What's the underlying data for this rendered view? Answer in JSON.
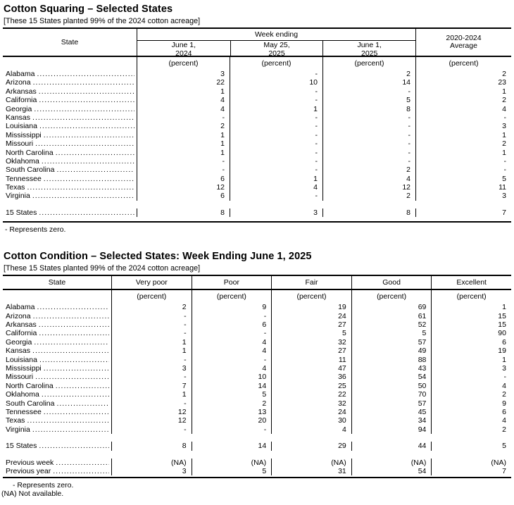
{
  "squaring": {
    "title": "Cotton Squaring – Selected States",
    "subtitle": "[These 15 States planted 99% of the 2024 cotton acreage]",
    "header": {
      "state": "State",
      "group": "Week ending",
      "cols": [
        "June 1,\n2024",
        "May 25,\n2025",
        "June 1,\n2025"
      ],
      "average": "2020-2024\nAverage"
    },
    "unit_label": "(percent)",
    "rows": [
      {
        "label": "Alabama",
        "values": [
          "3",
          "-",
          "2",
          "2"
        ]
      },
      {
        "label": "Arizona",
        "values": [
          "22",
          "10",
          "14",
          "23"
        ]
      },
      {
        "label": "Arkansas",
        "values": [
          "1",
          "-",
          "-",
          "1"
        ]
      },
      {
        "label": "California",
        "values": [
          "4",
          "-",
          "5",
          "2"
        ]
      },
      {
        "label": "Georgia",
        "values": [
          "4",
          "1",
          "8",
          "4"
        ]
      },
      {
        "label": "Kansas",
        "values": [
          "-",
          "-",
          "-",
          "-"
        ]
      },
      {
        "label": "Louisiana",
        "values": [
          "2",
          "-",
          "-",
          "3"
        ]
      },
      {
        "label": "Mississippi",
        "values": [
          "1",
          "-",
          "-",
          "1"
        ]
      },
      {
        "label": "Missouri",
        "values": [
          "1",
          "-",
          "-",
          "2"
        ]
      },
      {
        "label": "North Carolina",
        "values": [
          "1",
          "-",
          "-",
          "1"
        ]
      },
      {
        "label": "Oklahoma",
        "values": [
          "-",
          "-",
          "-",
          "-"
        ]
      },
      {
        "label": "South Carolina",
        "values": [
          "-",
          "-",
          "2",
          "-"
        ]
      },
      {
        "label": "Tennessee",
        "values": [
          "6",
          "1",
          "4",
          "5"
        ]
      },
      {
        "label": "Texas",
        "values": [
          "12",
          "4",
          "12",
          "11"
        ]
      },
      {
        "label": "Virginia",
        "values": [
          "6",
          "-",
          "2",
          "3"
        ]
      },
      {
        "label": "15 States",
        "values": [
          "8",
          "3",
          "8",
          "7"
        ],
        "gap": true
      }
    ],
    "footnote": "- Represents zero."
  },
  "condition": {
    "title": "Cotton Condition – Selected States: Week Ending June 1, 2025",
    "subtitle": "[These 15 States planted 99% of the 2024 cotton acreage]",
    "header": {
      "state": "State",
      "cols": [
        "Very poor",
        "Poor",
        "Fair",
        "Good",
        "Excellent"
      ]
    },
    "unit_label": "(percent)",
    "rows": [
      {
        "label": "Alabama",
        "values": [
          "2",
          "9",
          "19",
          "69",
          "1"
        ]
      },
      {
        "label": "Arizona",
        "values": [
          "-",
          "-",
          "24",
          "61",
          "15"
        ]
      },
      {
        "label": "Arkansas",
        "values": [
          "-",
          "6",
          "27",
          "52",
          "15"
        ]
      },
      {
        "label": "California",
        "values": [
          "-",
          "-",
          "5",
          "5",
          "90"
        ]
      },
      {
        "label": "Georgia",
        "values": [
          "1",
          "4",
          "32",
          "57",
          "6"
        ]
      },
      {
        "label": "Kansas",
        "values": [
          "1",
          "4",
          "27",
          "49",
          "19"
        ]
      },
      {
        "label": "Louisiana",
        "values": [
          "-",
          "-",
          "11",
          "88",
          "1"
        ]
      },
      {
        "label": "Mississippi",
        "values": [
          "3",
          "4",
          "47",
          "43",
          "3"
        ]
      },
      {
        "label": "Missouri",
        "values": [
          "-",
          "10",
          "36",
          "54",
          "-"
        ]
      },
      {
        "label": "North Carolina",
        "values": [
          "7",
          "14",
          "25",
          "50",
          "4"
        ]
      },
      {
        "label": "Oklahoma",
        "values": [
          "1",
          "5",
          "22",
          "70",
          "2"
        ]
      },
      {
        "label": "South Carolina",
        "values": [
          "-",
          "2",
          "32",
          "57",
          "9"
        ]
      },
      {
        "label": "Tennessee",
        "values": [
          "12",
          "13",
          "24",
          "45",
          "6"
        ]
      },
      {
        "label": "Texas",
        "values": [
          "12",
          "20",
          "30",
          "34",
          "4"
        ]
      },
      {
        "label": "Virginia",
        "values": [
          "-",
          "-",
          "4",
          "94",
          "2"
        ]
      },
      {
        "label": "15 States",
        "values": [
          "8",
          "14",
          "29",
          "44",
          "5"
        ],
        "gap": true
      },
      {
        "label": "Previous week",
        "values": [
          "(NA)",
          "(NA)",
          "(NA)",
          "(NA)",
          "(NA)"
        ],
        "gap": true
      },
      {
        "label": "Previous year",
        "values": [
          "3",
          "5",
          "31",
          "54",
          "7"
        ]
      }
    ],
    "footnotes": [
      "- Represents zero.",
      "(NA) Not available."
    ]
  }
}
